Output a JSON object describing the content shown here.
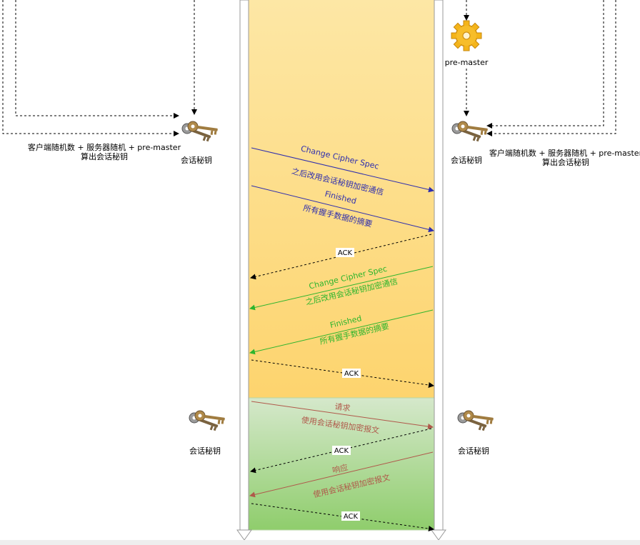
{
  "left_side": {
    "calc_line1": "客户端随机数 + 服务器随机 +  pre-master",
    "calc_line2": "算出会话秘钥",
    "key_label_top": "会话秘钥",
    "key_label_bottom": "会话秘钥"
  },
  "right_side": {
    "premaster_label": "pre-master",
    "calc_line1": "客户端随机数 + 服务器随机 +  pre-master",
    "calc_line2": "算出会话秘钥",
    "key_label_top": "会话秘钥",
    "key_label_bottom": "会话秘钥"
  },
  "messages": {
    "client_ccs_title": "Change Cipher Spec",
    "client_ccs_desc": "之后改用会话秘钥加密通信",
    "client_finished_title": "Finished",
    "client_finished_desc": "所有握手数据的摘要",
    "ack1": "ACK",
    "server_ccs_title": "Change Cipher Spec",
    "server_ccs_desc": "之后改用会话秘钥加密通信",
    "server_finished_title": "Finished",
    "server_finished_desc": "所有握手数据的摘要",
    "ack2": "ACK",
    "request_title": "请求",
    "request_desc": "使用会话秘钥加密报文",
    "ack3": "ACK",
    "response_title": "响应",
    "response_desc": "使用会话秘钥加密报文",
    "ack4": "ACK"
  },
  "colors": {
    "handshake_zone": "#fdd77a",
    "data_zone": "#a6d783",
    "client_arrow": "#2e2eae",
    "server_arrow": "#2db52d",
    "data_arrow": "#b0584a",
    "gear": "#f4b41a",
    "key": "#8a6a3a"
  }
}
